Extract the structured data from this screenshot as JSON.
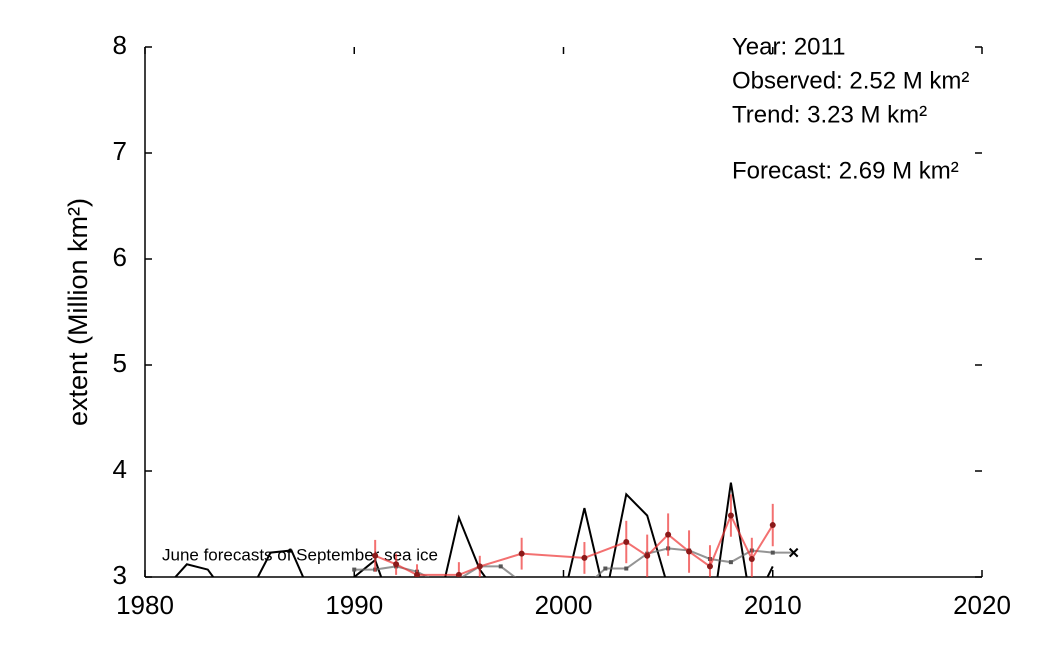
{
  "chart_data": {
    "type": "line",
    "ylabel": "extent (Million km²)",
    "xlim": [
      1980,
      2020
    ],
    "ylim": [
      3,
      8
    ],
    "xticks": [
      1980,
      1990,
      2000,
      2010,
      2020
    ],
    "yticks": [
      3,
      4,
      5,
      6,
      7,
      8
    ],
    "annotations": [
      {
        "text": "Year: 2011",
        "color": "#000000"
      },
      {
        "text": "Observed: 2.52 M km²",
        "color": "#000000"
      },
      {
        "text": "Trend: 3.23 M km²",
        "color": "#000000"
      },
      {
        "text": "Forecast: 2.69 M km²",
        "color": "#ee0000"
      }
    ],
    "note": "June forecasts of September sea ice",
    "series": [
      {
        "color": "#000000",
        "x": [
          1979,
          1980,
          1981,
          1982,
          1983,
          1984,
          1985,
          1986,
          1987,
          1988,
          1989,
          1990,
          1991,
          1992,
          1993,
          1994,
          1995,
          1996,
          1997,
          1998,
          1999,
          2000,
          2001,
          2002,
          2003,
          2004,
          2005,
          2006,
          2007,
          2008,
          2009,
          2010
        ],
        "values": [
          2.7,
          2.8,
          2.9,
          3.12,
          3.07,
          2.8,
          2.85,
          3.23,
          3.25,
          2.8,
          2.9,
          3.0,
          3.16,
          2.6,
          2.8,
          2.7,
          3.56,
          3.07,
          2.8,
          2.7,
          2.8,
          2.8,
          3.65,
          2.8,
          3.78,
          3.58,
          2.9,
          2.8,
          2.5,
          3.89,
          2.7,
          3.1
        ]
      },
      {
        "color": "#666666",
        "x": [
          1990,
          1991,
          1992,
          1993,
          1994,
          1995,
          1996,
          1997,
          1998,
          1999,
          2000,
          2001,
          2002,
          2003,
          2004,
          2005,
          2006,
          2007,
          2008,
          2009,
          2010,
          2011
        ],
        "values": [
          3.07,
          3.07,
          3.1,
          3.05,
          2.95,
          2.98,
          3.1,
          3.1,
          2.95,
          2.9,
          2.85,
          2.9,
          3.08,
          3.08,
          3.22,
          3.27,
          3.25,
          3.17,
          3.14,
          3.25,
          3.23,
          3.23
        ]
      },
      {
        "color": "#ee3333",
        "x": [
          1991,
          1992,
          1993,
          1995,
          1996,
          1998,
          2001,
          2003,
          2004,
          2005,
          2006,
          2007,
          2008,
          2009,
          2010
        ],
        "values": [
          3.2,
          3.12,
          3.02,
          3.02,
          3.1,
          3.22,
          3.18,
          3.33,
          3.2,
          3.4,
          3.24,
          3.1,
          3.58,
          3.17,
          3.49
        ],
        "errors": [
          0.15,
          0.1,
          0.1,
          0.12,
          0.1,
          0.15,
          0.15,
          0.2,
          0.2,
          0.2,
          0.2,
          0.2,
          0.2,
          0.2,
          0.2
        ]
      }
    ]
  }
}
